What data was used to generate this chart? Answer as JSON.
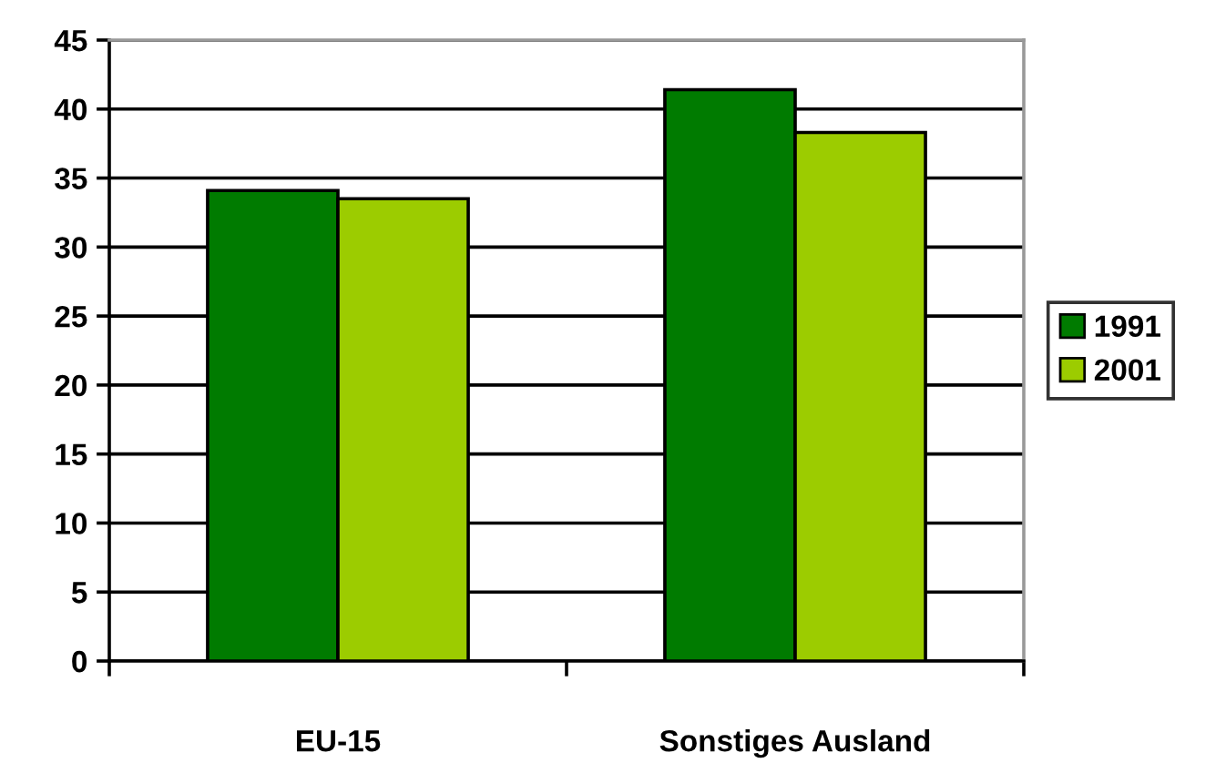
{
  "chart_data": {
    "type": "bar",
    "categories": [
      "EU-15",
      "Sonstiges Ausland"
    ],
    "series": [
      {
        "name": "1991",
        "color": "#007b00",
        "values": [
          34.1,
          41.4
        ]
      },
      {
        "name": "2001",
        "color": "#9ccc00",
        "values": [
          33.5,
          38.3
        ]
      }
    ],
    "ylim": [
      0,
      45
    ],
    "yticks": [
      0,
      5,
      10,
      15,
      20,
      25,
      30,
      35,
      40,
      45
    ],
    "grid": "y",
    "legend": "right"
  }
}
